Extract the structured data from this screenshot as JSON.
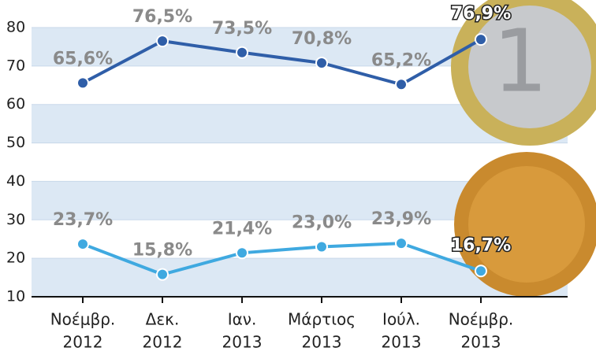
{
  "chart_data": {
    "type": "line",
    "categories": [
      [
        "Νοέμβρ.",
        "2012"
      ],
      [
        "Δεκ.",
        "2012"
      ],
      [
        "Ιαν.",
        "2013"
      ],
      [
        "Μάρτιος",
        "2013"
      ],
      [
        "Ιούλ.",
        "2013"
      ],
      [
        "Νοέμβρ.",
        "2013"
      ]
    ],
    "series": [
      {
        "color": "#2f5ea8",
        "values": [
          65.6,
          76.5,
          73.5,
          70.8,
          65.2,
          76.9
        ],
        "value_labels": [
          "65,6%",
          "76,5%",
          "73,5%",
          "70,8%",
          "65,2%",
          "76,9%"
        ]
      },
      {
        "color": "#3fa9e0",
        "values": [
          23.7,
          15.8,
          21.4,
          23.0,
          23.9,
          16.7
        ],
        "value_labels": [
          "23,7%",
          "15,8%",
          "21,4%",
          "23,0%",
          "23,9%",
          "16,7%"
        ]
      }
    ],
    "ylim": [
      10,
      80
    ],
    "yticks": [
      10,
      20,
      30,
      40,
      50,
      60,
      70,
      80
    ],
    "grid": true
  }
}
